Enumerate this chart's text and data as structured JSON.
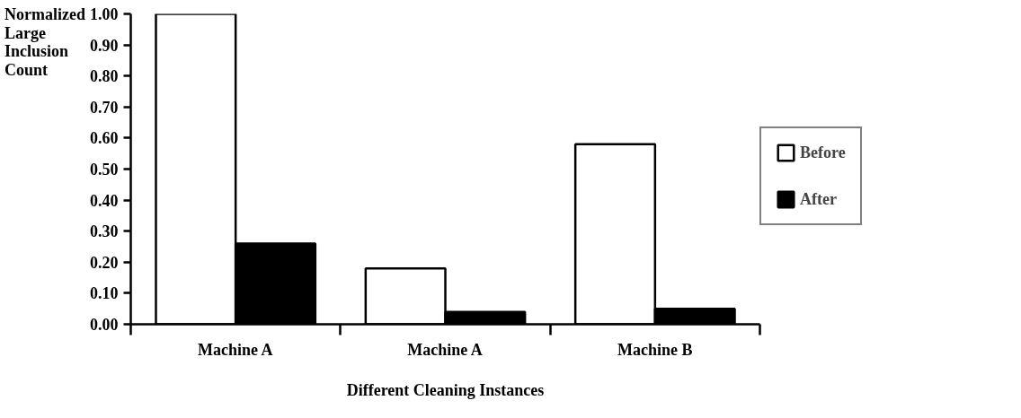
{
  "chart_data": {
    "type": "bar",
    "ylabel": "Normalized Large Inclusion Count",
    "xlabel": "Different Cleaning Instances",
    "categories": [
      "Machine A",
      "Machine A",
      "Machine B"
    ],
    "series": [
      {
        "name": "Before",
        "color": "#ffffff",
        "values": [
          1.0,
          0.18,
          0.58
        ]
      },
      {
        "name": "After",
        "color": "#000000",
        "values": [
          0.26,
          0.04,
          0.05
        ]
      }
    ],
    "ylim": [
      0,
      1
    ],
    "yticks": [
      {
        "value": 0,
        "label": "0.00"
      },
      {
        "value": 0.1,
        "label": "0.10"
      },
      {
        "value": 0.2,
        "label": "0.20"
      },
      {
        "value": 0.3,
        "label": "0.30"
      },
      {
        "value": 0.4,
        "label": "0.40"
      },
      {
        "value": 0.5,
        "label": "0.50"
      },
      {
        "value": 0.6,
        "label": "0.60"
      },
      {
        "value": 0.7,
        "label": "0.70"
      },
      {
        "value": 0.8,
        "label": "0.80"
      },
      {
        "value": 0.9,
        "label": "0.90"
      },
      {
        "value": 1,
        "label": "1.00"
      }
    ],
    "grid": false,
    "legend": "right"
  }
}
